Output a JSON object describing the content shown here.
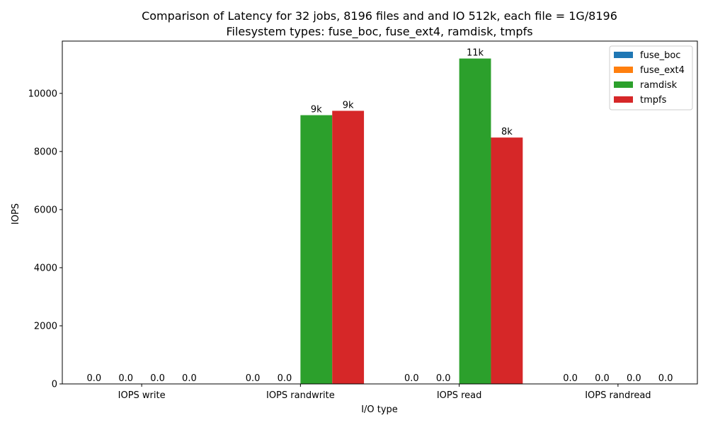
{
  "chart_data": {
    "type": "bar",
    "title": "Comparison of Latency for 32 jobs, 8196 files and  and IO 512k, each file = 1G/8196",
    "subtitle": "Filesystem types: fuse_boc, fuse_ext4, ramdisk, tmpfs",
    "xlabel": "I/O type",
    "ylabel": "IOPS",
    "categories": [
      "IOPS write",
      "IOPS randwrite",
      "IOPS read",
      "IOPS randread"
    ],
    "ylim": [
      0,
      11800
    ],
    "yticks": [
      0,
      2000,
      4000,
      6000,
      8000,
      10000
    ],
    "legend_position": "top-right",
    "series": [
      {
        "name": "fuse_boc",
        "color": "#1f77b4",
        "values": [
          0,
          0,
          0,
          0
        ],
        "labels": [
          "0.0",
          "0.0",
          "0.0",
          "0.0"
        ]
      },
      {
        "name": "fuse_ext4",
        "color": "#ff7f0e",
        "values": [
          0,
          0,
          0,
          0
        ],
        "labels": [
          "0.0",
          "0.0",
          "0.0",
          "0.0"
        ]
      },
      {
        "name": "ramdisk",
        "color": "#2ca02c",
        "values": [
          0,
          9250,
          11200,
          0
        ],
        "labels": [
          "0.0",
          "9k",
          "11k",
          "0.0"
        ]
      },
      {
        "name": "tmpfs",
        "color": "#d62728",
        "values": [
          0,
          9400,
          8480,
          0
        ],
        "labels": [
          "0.0",
          "9k",
          "8k",
          "0.0"
        ]
      }
    ]
  }
}
